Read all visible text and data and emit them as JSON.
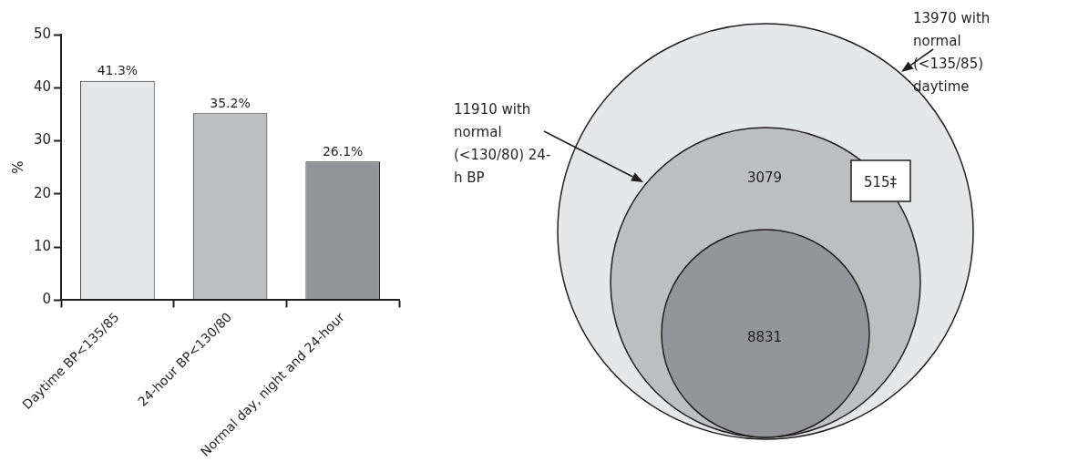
{
  "chart_data": [
    {
      "type": "bar",
      "ylabel": "%",
      "categories": [
        "Daytime BP<135/85",
        "24-hour BP<130/80",
        "Normal day, night and 24-hour"
      ],
      "values": [
        41.3,
        35.2,
        26.1
      ],
      "colors": [
        "#e6e7e8",
        "#bcbec0",
        "#939598"
      ],
      "value_labels": [
        "41.3%",
        "35.2%",
        "26.1%"
      ],
      "ylim": [
        0,
        50
      ],
      "yticks": [
        0,
        10,
        20,
        30,
        40,
        50
      ],
      "grid": false
    },
    {
      "type": "other",
      "colors": [
        "#e6e7e8",
        "#bcbec0",
        "#939598"
      ],
      "annotations": [
        "13970 with normal (<135/85) daytime",
        "11910 with normal (<130/80) 24-h BP",
        "3079",
        "515‡",
        "8831"
      ]
    }
  ]
}
